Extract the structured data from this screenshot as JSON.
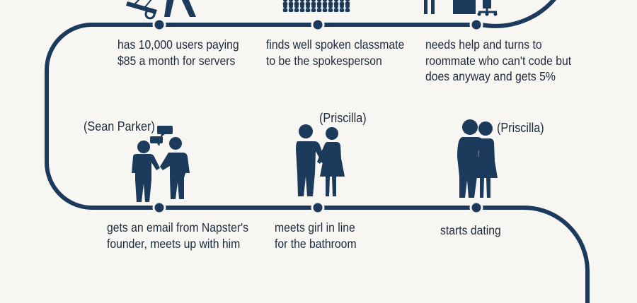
{
  "colors": {
    "path": "#1b3a5c",
    "figure": "#1b3a5c",
    "text": "#1c2a3a",
    "background": "#f8f6f2"
  },
  "milestones": [
    {
      "caption": "has 10,000 users paying\n$85 a month for servers",
      "icon": "computer-cart-icon"
    },
    {
      "caption": "finds well spoken classmate\nto be the spokesperson",
      "icon": "audience-icon"
    },
    {
      "caption": "needs help and turns to\nroommate who can't code but\ndoes anyway and gets 5%",
      "icon": "desk-chair-icon"
    },
    {
      "caption": "gets an email from Napster's\nfounder, meets up with him",
      "label": "(Sean Parker)",
      "icon": "handshake-people-icon"
    },
    {
      "caption": "meets girl in line\nfor the bathroom",
      "label": "(Priscilla)",
      "icon": "couple-holding-hands-icon"
    },
    {
      "caption": "starts dating",
      "label": "(Priscilla)",
      "icon": "couple-hugging-icon"
    }
  ]
}
